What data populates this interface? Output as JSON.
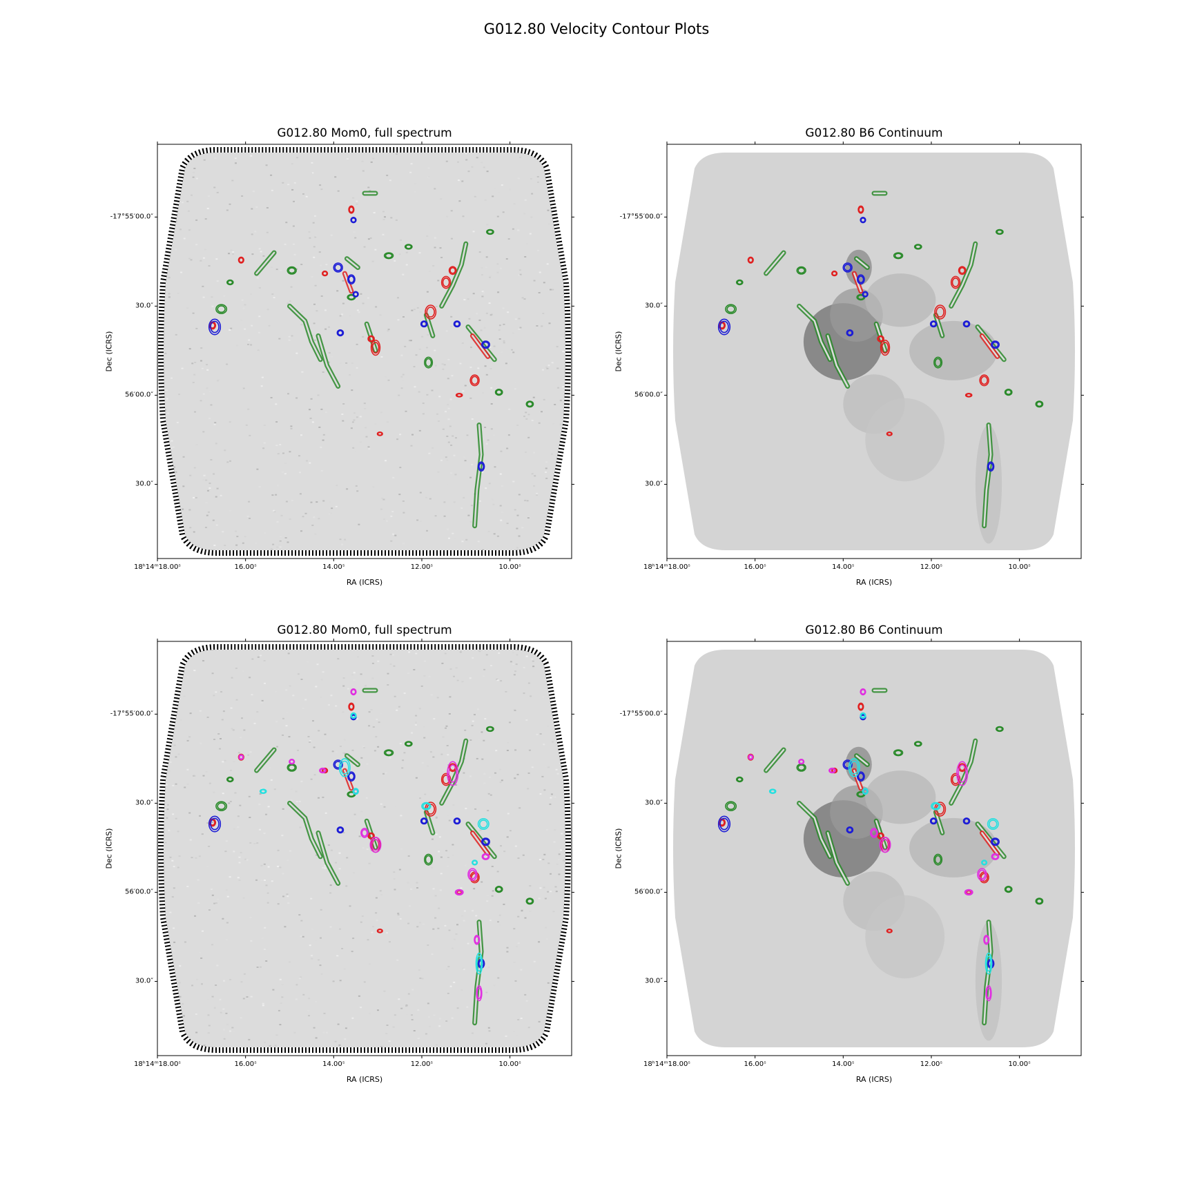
{
  "figure": {
    "title": "G012.80 Velocity Contour Plots"
  },
  "colors": {
    "green": "#2a8a2a",
    "red": "#e02020",
    "blue": "#1c1cd6",
    "cyan": "#26e0e0",
    "magenta": "#e030e0",
    "frame": "#000000"
  },
  "panels": [
    {
      "title": "G012.80 Mom0, full spectrum",
      "background": "noisy-mom0",
      "contour_set": "red-blue"
    },
    {
      "title": "G012.80 B6 Continuum",
      "background": "continuum",
      "contour_set": "red-blue"
    },
    {
      "title": "G012.80 Mom0, full spectrum",
      "background": "noisy-mom0",
      "contour_set": "multi"
    },
    {
      "title": "G012.80 B6 Continuum",
      "background": "continuum",
      "contour_set": "multi"
    }
  ],
  "axes": {
    "xlabel": "RA (ICRS)",
    "ylabel": "Dec (ICRS)",
    "xticks": [
      {
        "label": "18ʰ14ᵐ18.00ˢ",
        "sec": 18.0
      },
      {
        "label": "16.00ˢ",
        "sec": 16.0
      },
      {
        "label": "14.00ˢ",
        "sec": 14.0
      },
      {
        "label": "12.00ˢ",
        "sec": 12.0
      },
      {
        "label": "10.00ˢ",
        "sec": 10.0
      }
    ],
    "yticks": [
      {
        "label": "-17°55′00.0″",
        "arcsec": 0
      },
      {
        "label": "30.0″",
        "arcsec": 30
      },
      {
        "label": "56′00.0″",
        "arcsec": 60
      },
      {
        "label": "30.0″",
        "arcsec": 90
      }
    ],
    "x_range_sec": [
      18.0,
      8.6
    ],
    "y_range_arcsec": [
      -24.5,
      115
    ]
  },
  "chart_data": {
    "type": "contour",
    "object": "G012.80",
    "coordinate_frame": "ICRS",
    "x_axis": {
      "label": "RA (ICRS)",
      "units": "seconds of RA (18h14m)",
      "range": [
        18.0,
        8.6
      ],
      "ticks": [
        18.0,
        16.0,
        14.0,
        12.0,
        10.0
      ]
    },
    "y_axis": {
      "label": "Dec (ICRS)",
      "units": "arcsec offset south of -17°55′00.0″",
      "range": [
        -24.5,
        115
      ],
      "ticks": [
        0,
        30,
        60,
        90
      ]
    },
    "features": {
      "green": [
        {
          "type": "line",
          "pts": [
            [
              15.75,
              19
            ],
            [
              15.35,
              12
            ]
          ]
        },
        {
          "type": "line",
          "pts": [
            [
              15.0,
              30
            ],
            [
              14.65,
              35
            ],
            [
              14.5,
              42
            ],
            [
              14.3,
              48
            ]
          ]
        },
        {
          "type": "line",
          "pts": [
            [
              14.35,
              40
            ],
            [
              14.15,
              50
            ],
            [
              13.9,
              57
            ]
          ]
        },
        {
          "type": "line",
          "pts": [
            [
              13.7,
              14
            ],
            [
              13.45,
              17
            ]
          ]
        },
        {
          "type": "line",
          "pts": [
            [
              13.25,
              36
            ],
            [
              13.05,
              45
            ]
          ]
        },
        {
          "type": "line",
          "pts": [
            [
              11.55,
              30
            ],
            [
              11.3,
              23
            ],
            [
              11.1,
              16
            ],
            [
              11.0,
              9
            ]
          ]
        },
        {
          "type": "line",
          "pts": [
            [
              11.9,
              33
            ],
            [
              11.75,
              40
            ]
          ]
        },
        {
          "type": "line",
          "pts": [
            [
              10.95,
              37
            ],
            [
              10.35,
              48
            ]
          ]
        },
        {
          "type": "line",
          "pts": [
            [
              10.7,
              70
            ],
            [
              10.65,
              80
            ],
            [
              10.75,
              92
            ],
            [
              10.8,
              104
            ]
          ]
        },
        {
          "type": "line",
          "pts": [
            [
              13.05,
              -8
            ],
            [
              13.3,
              -8
            ]
          ]
        },
        {
          "type": "blob",
          "x": 16.55,
          "y": 31,
          "rx": 0.12,
          "ry": 1.5
        },
        {
          "type": "blob",
          "x": 14.95,
          "y": 18,
          "rx": 0.1,
          "ry": 1.2
        },
        {
          "type": "blob",
          "x": 12.75,
          "y": 13,
          "rx": 0.1,
          "ry": 1.0
        },
        {
          "type": "blob",
          "x": 12.3,
          "y": 10,
          "rx": 0.08,
          "ry": 0.8
        },
        {
          "type": "blob",
          "x": 10.45,
          "y": 5,
          "rx": 0.08,
          "ry": 0.8
        },
        {
          "type": "blob",
          "x": 11.85,
          "y": 49,
          "rx": 0.09,
          "ry": 1.8
        },
        {
          "type": "blob",
          "x": 10.25,
          "y": 59,
          "rx": 0.08,
          "ry": 1.0
        },
        {
          "type": "blob",
          "x": 9.55,
          "y": 63,
          "rx": 0.08,
          "ry": 1.0
        },
        {
          "type": "blob",
          "x": 13.6,
          "y": 27,
          "rx": 0.09,
          "ry": 0.9
        },
        {
          "type": "blob",
          "x": 16.35,
          "y": 22,
          "rx": 0.07,
          "ry": 0.8
        }
      ],
      "red": [
        {
          "type": "blob",
          "x": 13.6,
          "y": -2.5,
          "rx": 0.06,
          "ry": 1.2
        },
        {
          "type": "blob",
          "x": 16.1,
          "y": 14.5,
          "rx": 0.06,
          "ry": 1.0
        },
        {
          "type": "blob",
          "x": 16.75,
          "y": 36.5,
          "rx": 0.07,
          "ry": 1.2
        },
        {
          "type": "blob",
          "x": 14.2,
          "y": 19,
          "rx": 0.06,
          "ry": 0.8
        },
        {
          "type": "blob",
          "x": 13.05,
          "y": 44,
          "rx": 0.1,
          "ry": 2.5
        },
        {
          "type": "blob",
          "x": 13.15,
          "y": 41,
          "rx": 0.07,
          "ry": 1.0
        },
        {
          "type": "blob",
          "x": 11.8,
          "y": 32,
          "rx": 0.12,
          "ry": 2.3
        },
        {
          "type": "blob",
          "x": 11.45,
          "y": 22,
          "rx": 0.1,
          "ry": 2.0
        },
        {
          "type": "blob",
          "x": 11.3,
          "y": 18,
          "rx": 0.08,
          "ry": 1.3
        },
        {
          "type": "blob",
          "x": 10.8,
          "y": 55,
          "rx": 0.1,
          "ry": 1.8
        },
        {
          "type": "blob",
          "x": 12.95,
          "y": 73,
          "rx": 0.06,
          "ry": 0.6
        },
        {
          "type": "line",
          "pts": [
            [
              10.85,
              40
            ],
            [
              10.5,
              47
            ]
          ]
        },
        {
          "type": "line",
          "pts": [
            [
              13.75,
              19
            ],
            [
              13.6,
              25
            ]
          ]
        },
        {
          "type": "blob",
          "x": 11.15,
          "y": 60,
          "rx": 0.07,
          "ry": 0.6
        }
      ],
      "blue": [
        {
          "type": "blob",
          "x": 13.55,
          "y": 1,
          "rx": 0.06,
          "ry": 0.9
        },
        {
          "type": "blob",
          "x": 16.7,
          "y": 37,
          "rx": 0.13,
          "ry": 2.6
        },
        {
          "type": "blob",
          "x": 13.9,
          "y": 17,
          "rx": 0.1,
          "ry": 1.5
        },
        {
          "type": "blob",
          "x": 13.6,
          "y": 21,
          "rx": 0.08,
          "ry": 1.5
        },
        {
          "type": "blob",
          "x": 13.5,
          "y": 26,
          "rx": 0.06,
          "ry": 0.9
        },
        {
          "type": "blob",
          "x": 13.85,
          "y": 39,
          "rx": 0.07,
          "ry": 1.0
        },
        {
          "type": "blob",
          "x": 11.2,
          "y": 36,
          "rx": 0.07,
          "ry": 1.0
        },
        {
          "type": "blob",
          "x": 10.55,
          "y": 43,
          "rx": 0.09,
          "ry": 1.2
        },
        {
          "type": "blob",
          "x": 10.65,
          "y": 84,
          "rx": 0.07,
          "ry": 1.5
        },
        {
          "type": "blob",
          "x": 11.95,
          "y": 36,
          "rx": 0.07,
          "ry": 1.0
        }
      ],
      "cyan": [
        {
          "type": "blob",
          "x": 13.55,
          "y": 0.5,
          "rx": 0.06,
          "ry": 0.9
        },
        {
          "type": "blob",
          "x": 13.75,
          "y": 18,
          "rx": 0.12,
          "ry": 3.0
        },
        {
          "type": "blob",
          "x": 13.5,
          "y": 26,
          "rx": 0.06,
          "ry": 1.0
        },
        {
          "type": "blob",
          "x": 15.6,
          "y": 26,
          "rx": 0.07,
          "ry": 0.7
        },
        {
          "type": "blob",
          "x": 11.9,
          "y": 31,
          "rx": 0.1,
          "ry": 1.2
        },
        {
          "type": "blob",
          "x": 10.6,
          "y": 37,
          "rx": 0.12,
          "ry": 1.8
        },
        {
          "type": "blob",
          "x": 10.7,
          "y": 84,
          "rx": 0.07,
          "ry": 3.5
        },
        {
          "type": "blob",
          "x": 10.8,
          "y": 50,
          "rx": 0.06,
          "ry": 0.8
        }
      ],
      "magenta": [
        {
          "type": "blob",
          "x": 13.55,
          "y": -7.5,
          "rx": 0.06,
          "ry": 1.0
        },
        {
          "type": "blob",
          "x": 16.1,
          "y": 14.5,
          "rx": 0.05,
          "ry": 0.8
        },
        {
          "type": "blob",
          "x": 13.05,
          "y": 44,
          "rx": 0.12,
          "ry": 2.5
        },
        {
          "type": "blob",
          "x": 13.3,
          "y": 40,
          "rx": 0.08,
          "ry": 1.5
        },
        {
          "type": "blob",
          "x": 11.3,
          "y": 20,
          "rx": 0.12,
          "ry": 4.0
        },
        {
          "type": "blob",
          "x": 10.85,
          "y": 54,
          "rx": 0.1,
          "ry": 2.0
        },
        {
          "type": "blob",
          "x": 11.15,
          "y": 60,
          "rx": 0.09,
          "ry": 0.9
        },
        {
          "type": "blob",
          "x": 10.75,
          "y": 76,
          "rx": 0.06,
          "ry": 1.5
        },
        {
          "type": "blob",
          "x": 10.7,
          "y": 94,
          "rx": 0.06,
          "ry": 2.5
        },
        {
          "type": "blob",
          "x": 10.55,
          "y": 48,
          "rx": 0.08,
          "ry": 1.0
        },
        {
          "type": "blob",
          "x": 14.95,
          "y": 16,
          "rx": 0.06,
          "ry": 0.8
        },
        {
          "type": "blob",
          "x": 14.25,
          "y": 19,
          "rx": 0.07,
          "ry": 0.8
        }
      ]
    },
    "contour_sets": {
      "red-blue": [
        "green",
        "red",
        "blue"
      ],
      "multi": [
        "green",
        "red",
        "blue",
        "cyan",
        "magenta"
      ]
    }
  }
}
